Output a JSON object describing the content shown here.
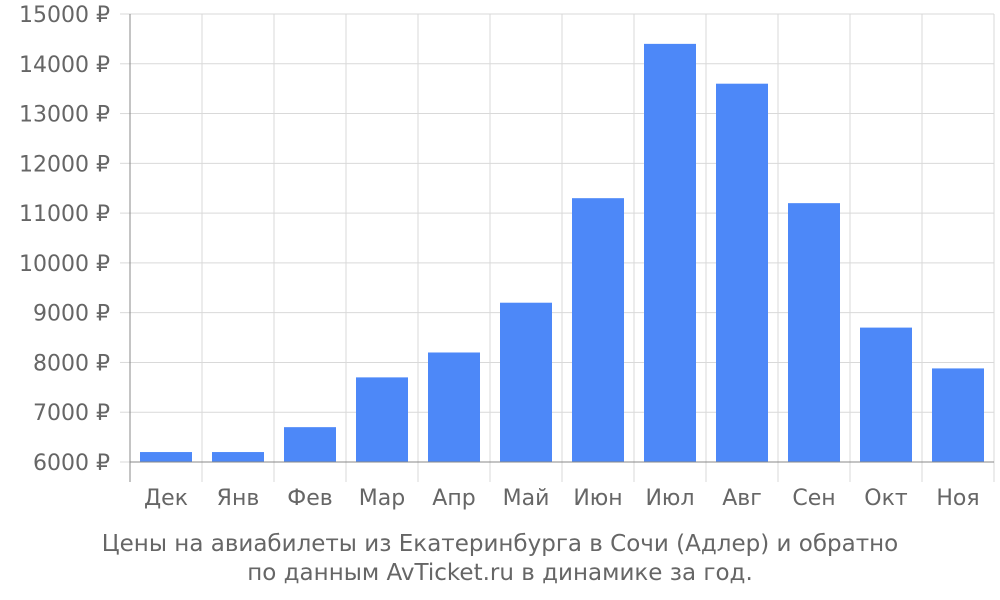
{
  "chart_data": {
    "type": "bar",
    "categories": [
      "Дек",
      "Янв",
      "Фев",
      "Мар",
      "Апр",
      "Май",
      "Июн",
      "Июл",
      "Авг",
      "Сен",
      "Окт",
      "Ноя"
    ],
    "values": [
      6200,
      6200,
      6700,
      7700,
      8200,
      9200,
      11300,
      14400,
      13600,
      11200,
      8700,
      7880
    ],
    "yticks": [
      "6000 ₽",
      "7000 ₽",
      "8000 ₽",
      "9000 ₽",
      "10000 ₽",
      "11000 ₽",
      "12000 ₽",
      "13000 ₽",
      "14000 ₽",
      "15000 ₽"
    ],
    "ylim": [
      6000,
      15000
    ],
    "ytick_step": 1000,
    "bar_color": "#4d88f8",
    "grid": true,
    "title": "",
    "xlabel": "",
    "ylabel": ""
  },
  "caption": {
    "line1": "Цены на авиабилеты из Екатеринбурга в Сочи (Адлер) и обратно",
    "line2": "по данным AvTicket.ru в динамике за год."
  }
}
